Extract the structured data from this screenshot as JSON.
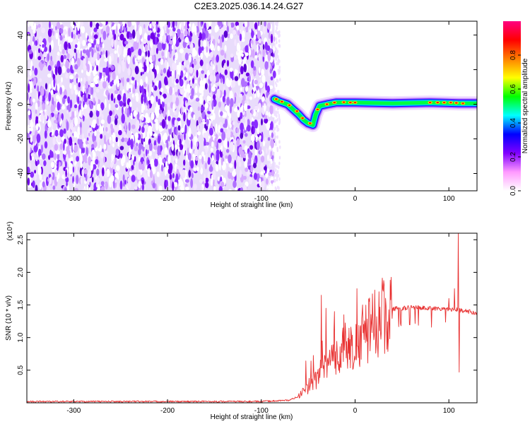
{
  "title": "C2E3.2025.036.14.24.G27",
  "chart_data": [
    {
      "type": "heatmap",
      "xlabel": "Height of straight line (km)",
      "ylabel": "Frequency (Hz)",
      "xlim": [
        -350,
        130
      ],
      "ylim": [
        -50,
        48
      ],
      "xticks": [
        -300,
        -200,
        -100,
        0,
        100
      ],
      "yticks": [
        -40,
        -20,
        0,
        20,
        40
      ],
      "colorbar": {
        "label": "Normalized spectral amplitude",
        "range": [
          0,
          1
        ],
        "ticks": [
          "0.0",
          "0.2",
          "0.4",
          "0.6",
          "0.8"
        ],
        "tick_values": [
          0,
          0.2,
          0.4,
          0.6,
          0.8
        ],
        "colormap": [
          "#ffffff",
          "#ff99ff",
          "#8000ff",
          "#0000ff",
          "#00ffff",
          "#00ff00",
          "#ffff00",
          "#ff8000",
          "#ff0000",
          "#ff0080"
        ]
      },
      "regions": {
        "noise_x_range": [
          -350,
          -86
        ],
        "signal_track": [
          {
            "x": -86,
            "y": 3
          },
          {
            "x": -80,
            "y": 1.5
          },
          {
            "x": -72,
            "y": 0
          },
          {
            "x": -66,
            "y": -3
          },
          {
            "x": -60,
            "y": -6
          },
          {
            "x": -55,
            "y": -9
          },
          {
            "x": -50,
            "y": -11
          },
          {
            "x": -45,
            "y": -12
          },
          {
            "x": -42,
            "y": -6
          },
          {
            "x": -38,
            "y": -1
          },
          {
            "x": -30,
            "y": 0
          },
          {
            "x": -20,
            "y": 1
          },
          {
            "x": 0,
            "y": 1
          },
          {
            "x": 40,
            "y": 0.5
          },
          {
            "x": 80,
            "y": 1
          },
          {
            "x": 110,
            "y": 0.5
          },
          {
            "x": 130,
            "y": 0.5
          }
        ]
      }
    },
    {
      "type": "line",
      "xlabel": "Height of straight line (km)",
      "ylabel": "SNR (10 * v/v)",
      "scale_label": "(x10⁴)",
      "xlim": [
        -350,
        130
      ],
      "ylim": [
        0,
        2.6
      ],
      "xticks": [
        -300,
        -200,
        -100,
        0,
        100
      ],
      "yticks": [
        0.5,
        1.0,
        1.5,
        2.0,
        2.5
      ],
      "ytick_labels": [
        "0.5",
        "1.0",
        "1.5",
        "2.0",
        "2.5"
      ],
      "color": "#e83030",
      "envelope": {
        "x": [
          -350,
          -100,
          -70,
          -60,
          -50,
          -40,
          -30,
          -20,
          -10,
          0,
          10,
          20,
          30,
          40,
          60,
          80,
          100,
          110,
          120,
          130
        ],
        "y": [
          0.02,
          0.02,
          0.04,
          0.1,
          0.25,
          0.4,
          0.55,
          0.7,
          0.8,
          0.9,
          1.05,
          1.2,
          1.35,
          1.44,
          1.46,
          1.45,
          1.44,
          1.42,
          1.4,
          1.38
        ]
      },
      "spikes": [
        {
          "x": -36,
          "y": 1.65
        },
        {
          "x": -31,
          "y": 1.45
        },
        {
          "x": -22,
          "y": 1.4
        },
        {
          "x": -12,
          "y": 1.35
        },
        {
          "x": 2,
          "y": 1.75
        },
        {
          "x": 8,
          "y": 1.5
        },
        {
          "x": 100,
          "y": 1.6
        },
        {
          "x": 106,
          "y": 1.75
        },
        {
          "x": 110,
          "y": 2.6
        },
        {
          "x": 111,
          "y": 0.47
        }
      ]
    }
  ]
}
